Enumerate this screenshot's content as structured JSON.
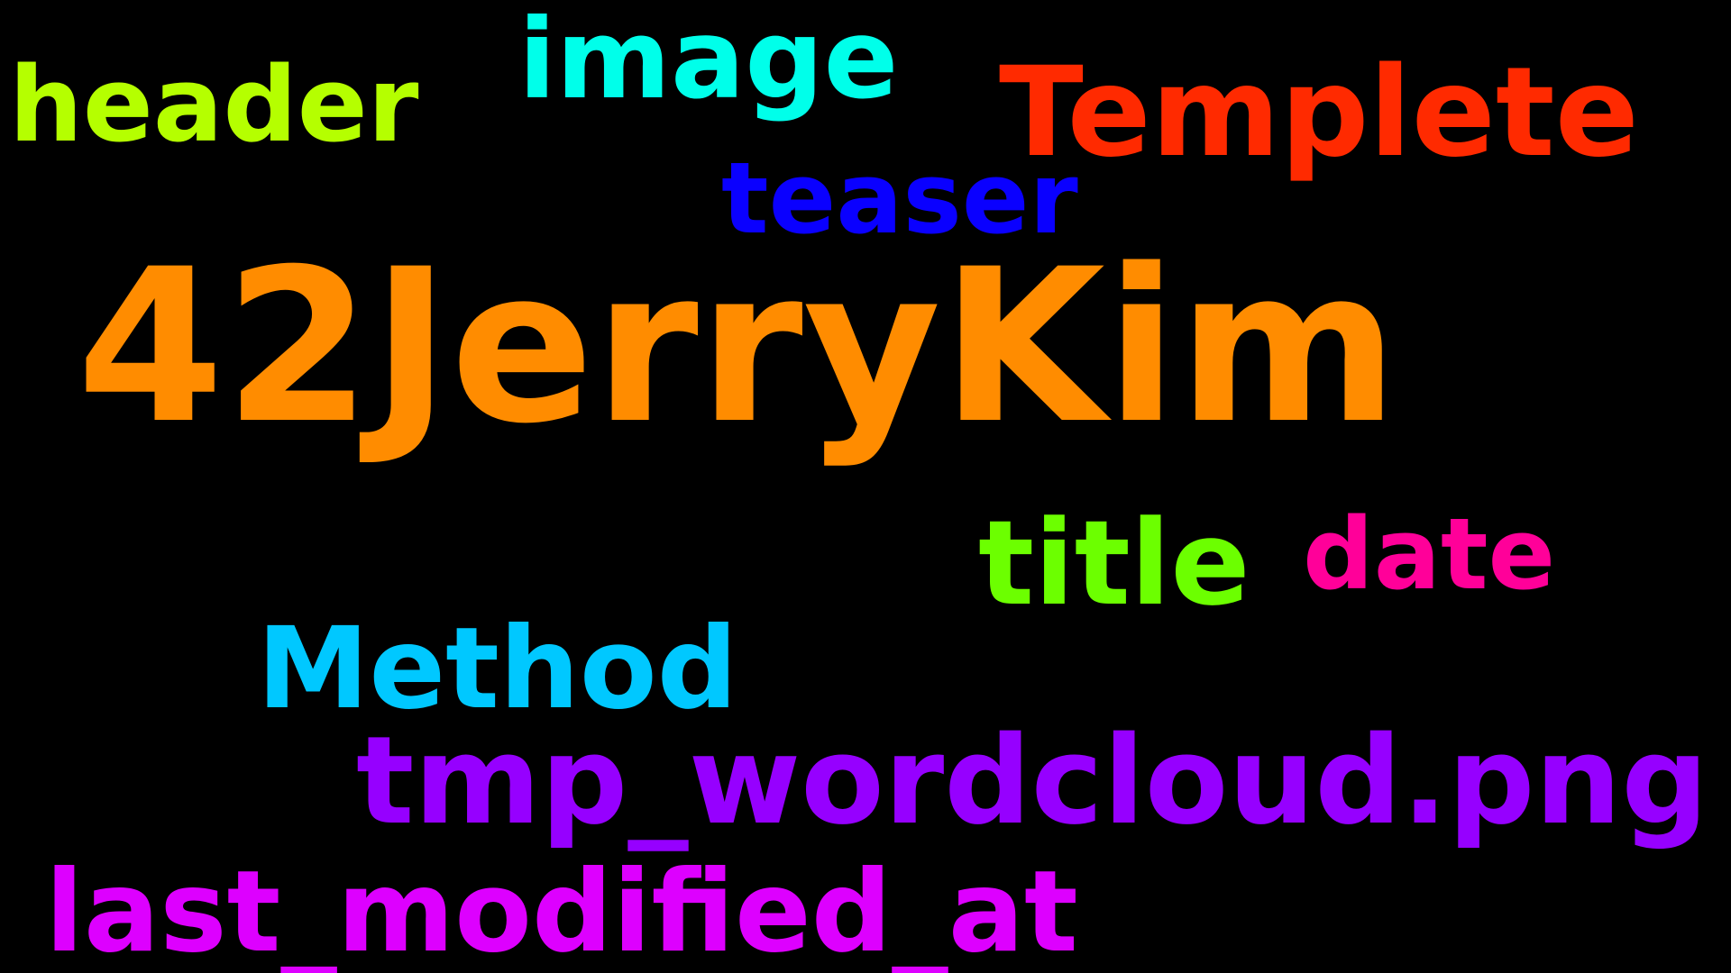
{
  "background": "#000000",
  "words": [
    {
      "id": "main",
      "text": "42JerryKim",
      "color": "#FF8C00"
    },
    {
      "id": "templete",
      "text": "Templete",
      "color": "#FF2A00"
    },
    {
      "id": "image",
      "text": "image",
      "color": "#00FFEA"
    },
    {
      "id": "header",
      "text": "header",
      "color": "#B5FF00"
    },
    {
      "id": "teaser",
      "text": "teaser",
      "color": "#0A00FF"
    },
    {
      "id": "title",
      "text": "title",
      "color": "#6CFF00"
    },
    {
      "id": "date",
      "text": "date",
      "color": "#FF0099"
    },
    {
      "id": "method",
      "text": "Method",
      "color": "#00C8FF"
    },
    {
      "id": "tmp",
      "text": "tmp_wordcloud.png",
      "color": "#9600FF"
    },
    {
      "id": "lastmod",
      "text": "last_modified_at",
      "color": "#DD00FF"
    }
  ]
}
